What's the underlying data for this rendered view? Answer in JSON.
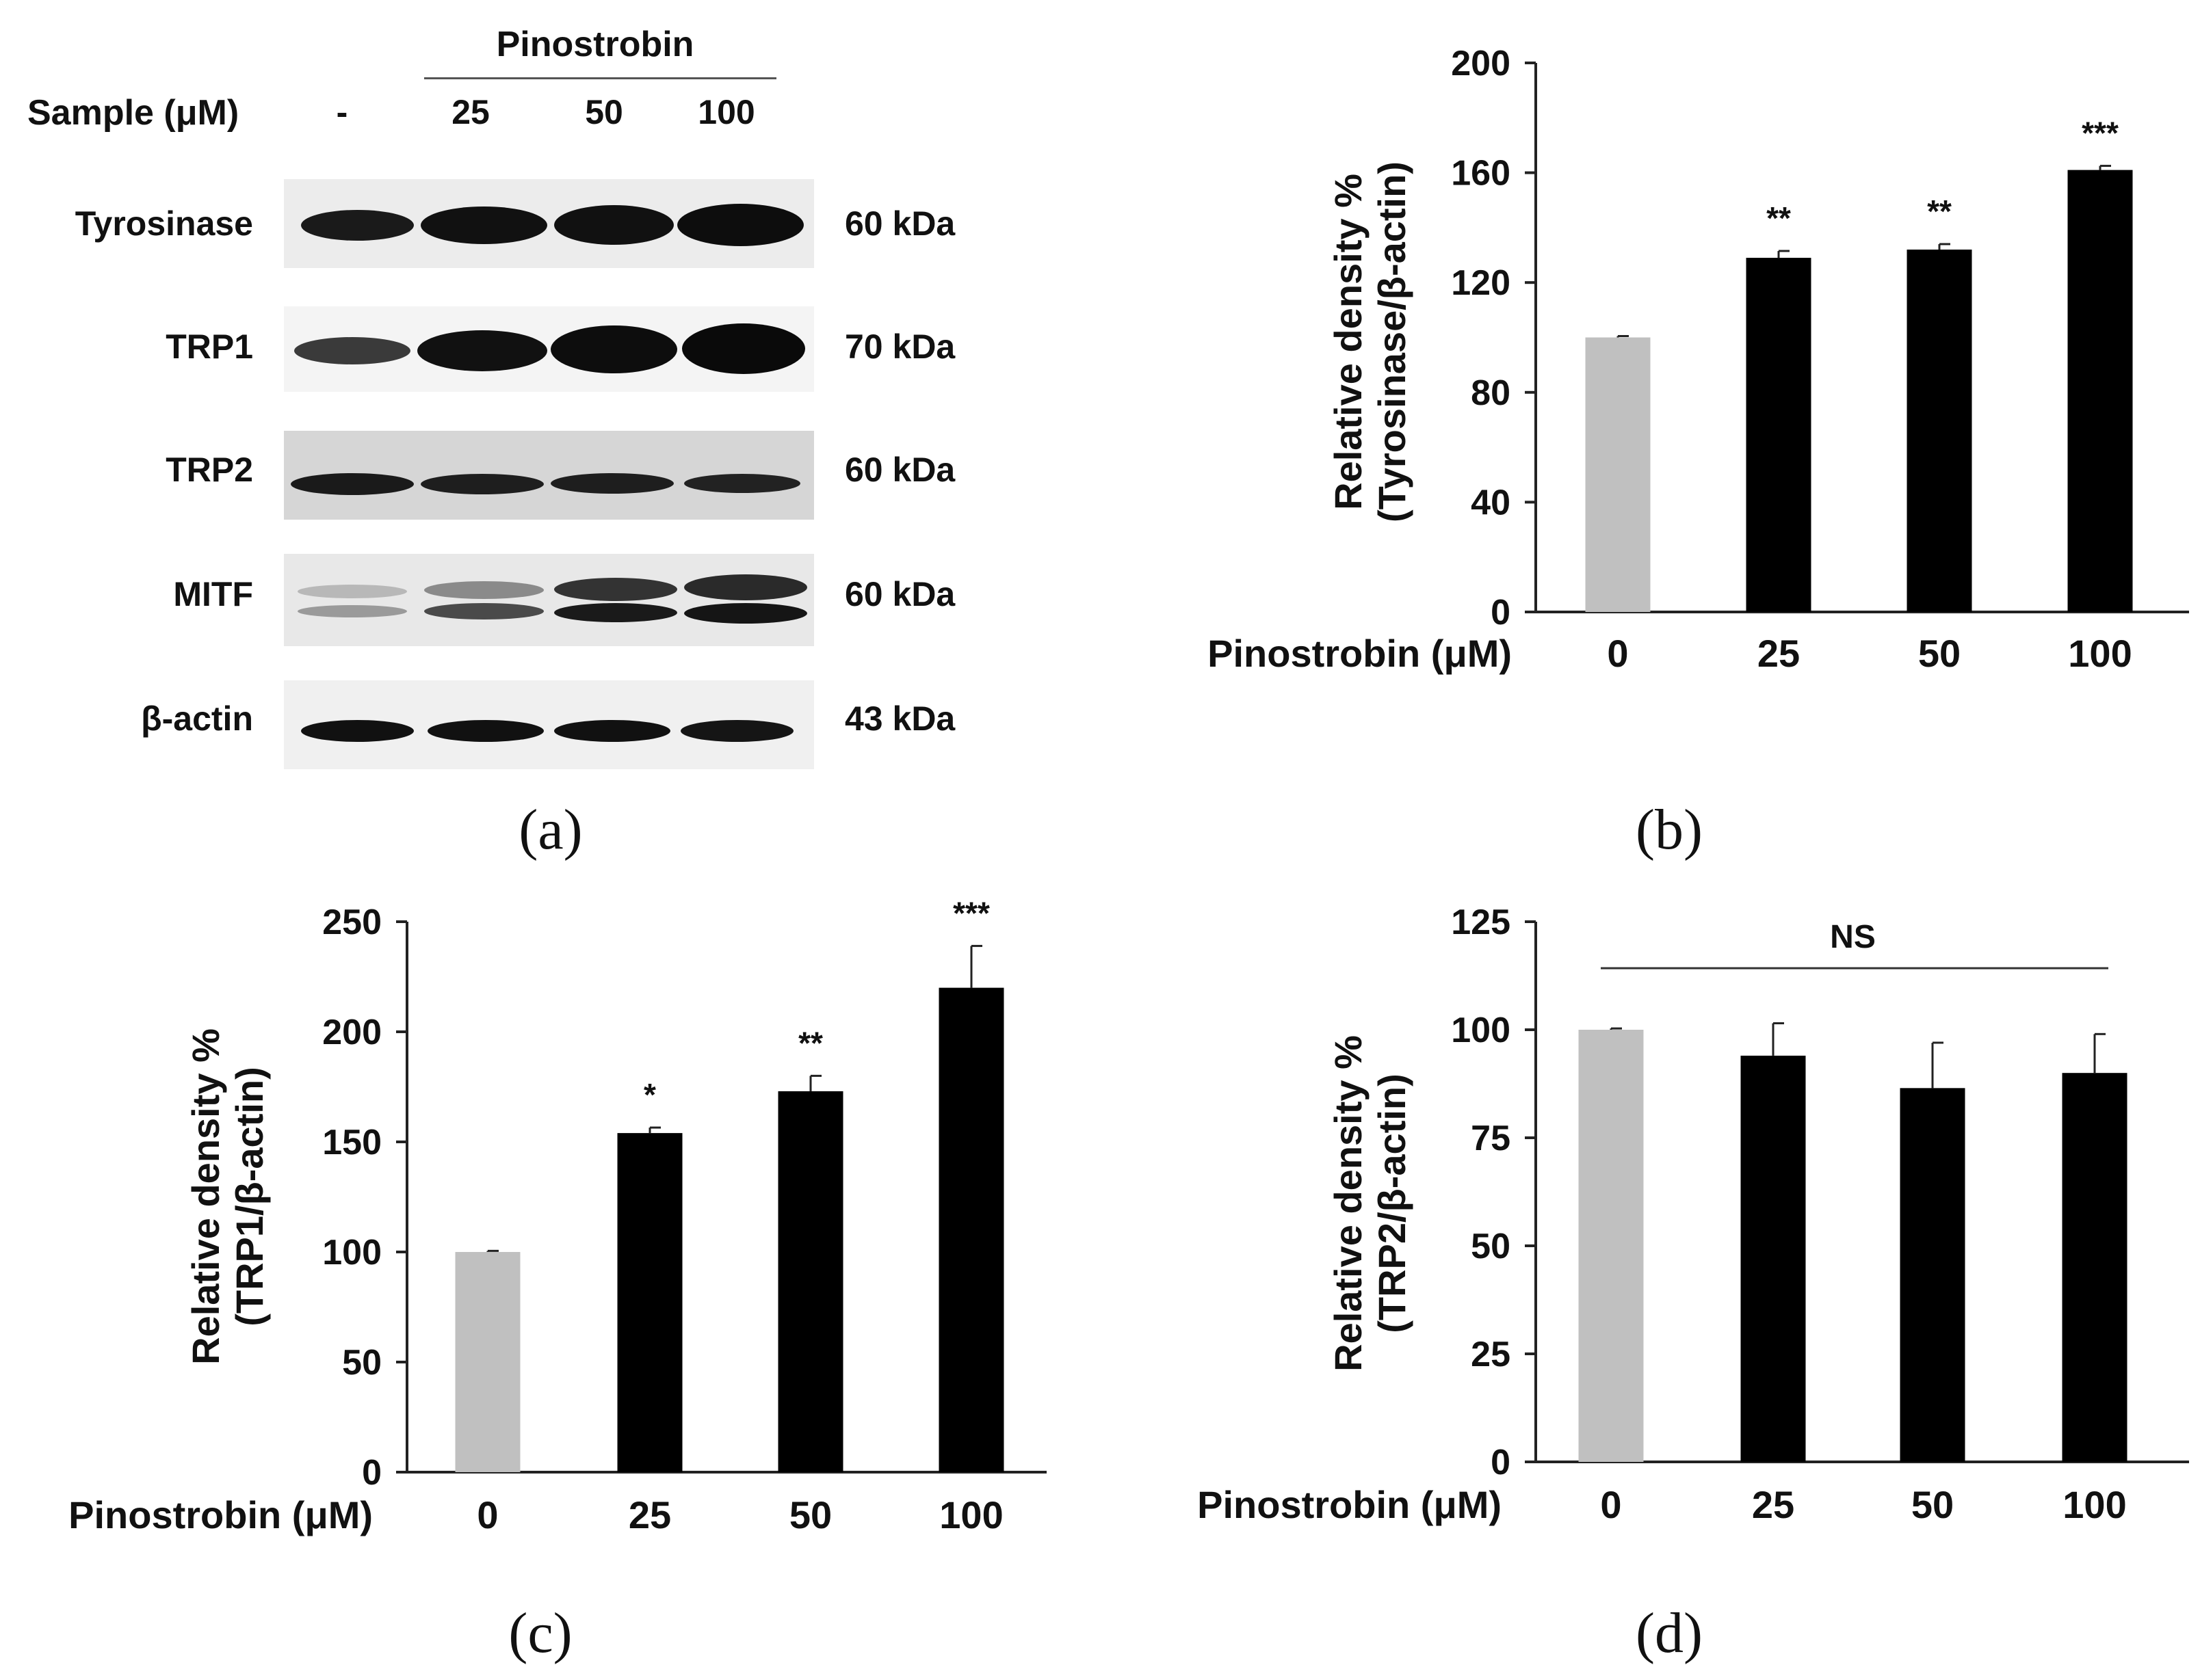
{
  "western_blot": {
    "group_label": "Pinostrobin",
    "sample_label": "Sample (μM)",
    "lanes": [
      "-",
      "25",
      "50",
      "100"
    ],
    "proteins": [
      {
        "name": "Tyrosinase",
        "kda": "60 kDa"
      },
      {
        "name": "TRP1",
        "kda": "70 kDa"
      },
      {
        "name": "TRP2",
        "kda": "60 kDa"
      },
      {
        "name": "MITF",
        "kda": "60 kDa"
      },
      {
        "name": "β-actin",
        "kda": "43 kDa"
      }
    ],
    "band_intensity": {
      "Tyrosinase": [
        0.75,
        0.85,
        0.87,
        0.9
      ],
      "TRP1": [
        0.55,
        0.85,
        0.92,
        0.95
      ],
      "TRP2": [
        0.85,
        0.82,
        0.82,
        0.8
      ],
      "MITF": [
        0.25,
        0.45,
        0.75,
        0.8
      ],
      "beta_actin": [
        0.9,
        0.9,
        0.9,
        0.9
      ]
    }
  },
  "panel_labels": {
    "a": "(a)",
    "b": "(b)",
    "c": "(c)",
    "d": "(d)"
  },
  "colors": {
    "control": "#c0c0c0",
    "treated": "#000000"
  },
  "chart_data": [
    {
      "id": "b",
      "type": "bar",
      "xlabel": "Pinostrobin (μM)",
      "ylabel_line1": "Relative density %",
      "ylabel_line2": "(Tyrosinase/β-actin)",
      "categories": [
        "0",
        "25",
        "50",
        "100"
      ],
      "values": [
        100,
        129,
        132,
        161
      ],
      "errors": [
        0.5,
        2.5,
        2,
        1.5
      ],
      "annotations": [
        "",
        "**",
        "**",
        "***"
      ],
      "ylim": [
        0,
        200
      ],
      "yticks": [
        0,
        40,
        80,
        120,
        160,
        200
      ],
      "ns_label": ""
    },
    {
      "id": "c",
      "type": "bar",
      "xlabel": "Pinostrobin (μM)",
      "ylabel_line1": "Relative density %",
      "ylabel_line2": "(TRP1/β-actin)",
      "categories": [
        "0",
        "25",
        "50",
        "100"
      ],
      "values": [
        100,
        154,
        173,
        220
      ],
      "errors": [
        0.5,
        2.5,
        7,
        19
      ],
      "annotations": [
        "",
        "*",
        "**",
        "***"
      ],
      "ylim": [
        0,
        250
      ],
      "yticks": [
        0,
        50,
        100,
        150,
        200,
        250
      ],
      "ns_label": ""
    },
    {
      "id": "d",
      "type": "bar",
      "xlabel": "Pinostrobin (μM)",
      "ylabel_line1": "Relative density %",
      "ylabel_line2": "(TRP2/β-actin)",
      "categories": [
        "0",
        "25",
        "50",
        "100"
      ],
      "values": [
        100,
        94,
        86.5,
        90
      ],
      "errors": [
        0.3,
        7.5,
        10.5,
        9
      ],
      "annotations": [
        "",
        "",
        "",
        ""
      ],
      "ylim": [
        0,
        125
      ],
      "yticks": [
        0,
        25,
        50,
        75,
        100,
        125
      ],
      "ns_label": "NS"
    }
  ]
}
